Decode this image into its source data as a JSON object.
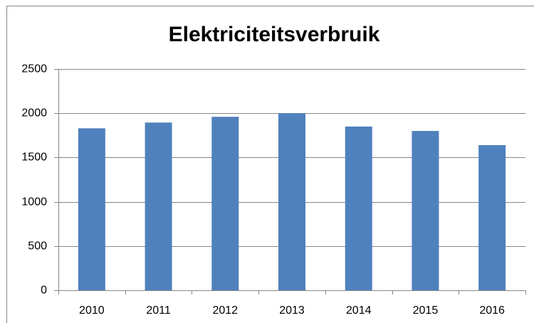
{
  "chart_data": {
    "type": "bar",
    "title": "Elektriciteitsverbruik",
    "categories": [
      "2010",
      "2011",
      "2012",
      "2013",
      "2014",
      "2015",
      "2016"
    ],
    "values": [
      1830,
      1895,
      1960,
      2000,
      1850,
      1800,
      1640
    ],
    "color": "#4f81bd",
    "ylim": [
      0,
      2500
    ],
    "yticks": [
      0,
      500,
      1000,
      1500,
      2000,
      2500
    ],
    "grid": true
  }
}
